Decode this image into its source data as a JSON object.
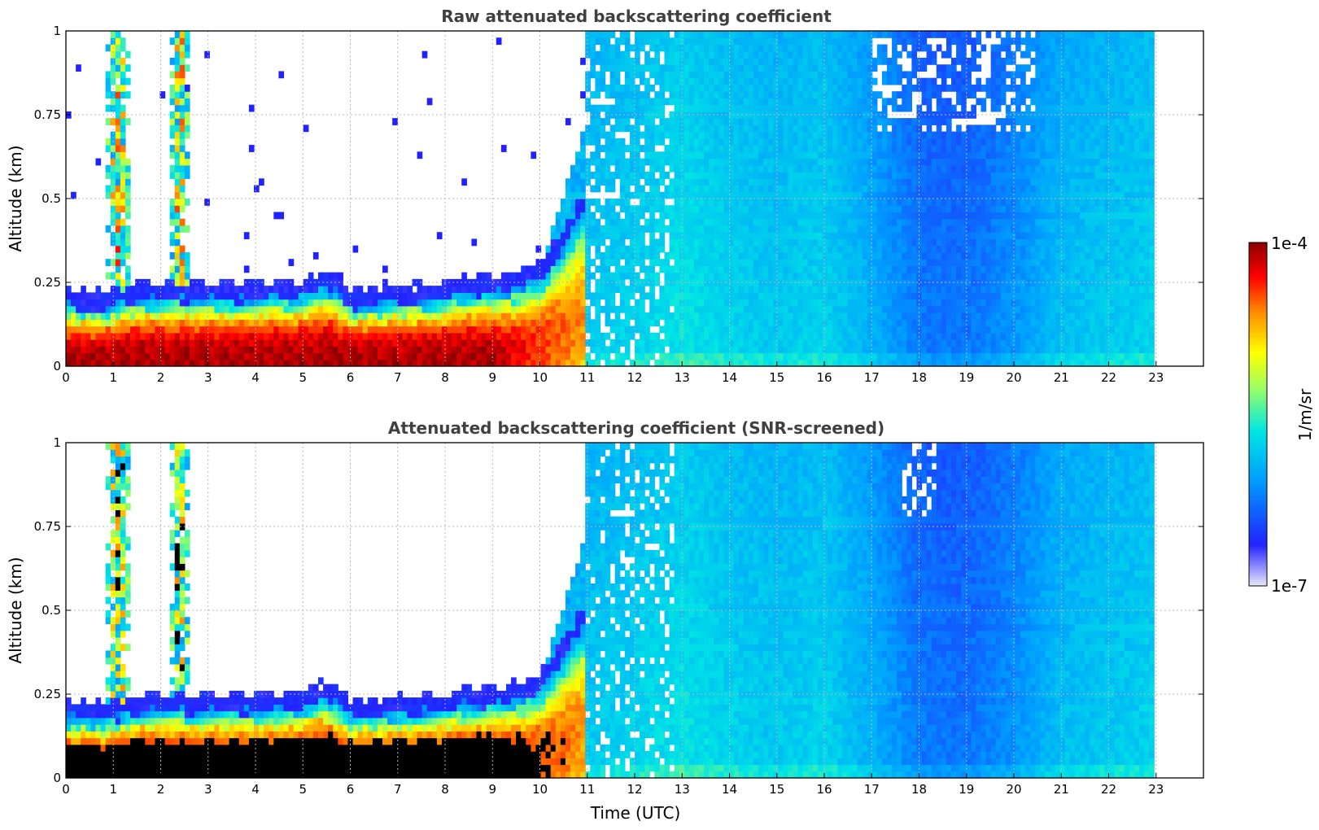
{
  "chart_data": [
    {
      "type": "heatmap",
      "title": "Raw attenuated backscattering coefficient",
      "ylabel": "Altitude (km)",
      "xlabel": "",
      "xlim": [
        0,
        24
      ],
      "ylim": [
        0,
        1
      ],
      "x_ticks": [
        "0",
        "1",
        "2",
        "3",
        "4",
        "5",
        "6",
        "7",
        "8",
        "9",
        "10",
        "11",
        "12",
        "13",
        "14",
        "15",
        "16",
        "17",
        "18",
        "19",
        "20",
        "21",
        "22",
        "23"
      ],
      "y_ticks": [
        "0",
        "0.25",
        "0.5",
        "0.75",
        "1"
      ],
      "grid": true,
      "data_end_hour": 23,
      "aerosol_layer_top_km": [
        [
          0,
          0.18
        ],
        [
          0.8,
          0.17
        ],
        [
          1.5,
          0.2
        ],
        [
          2.6,
          0.2
        ],
        [
          3,
          0.2
        ],
        [
          4,
          0.2
        ],
        [
          5,
          0.21
        ],
        [
          5.5,
          0.24
        ],
        [
          6,
          0.18
        ],
        [
          7,
          0.19
        ],
        [
          8,
          0.2
        ],
        [
          8.5,
          0.22
        ],
        [
          9,
          0.22
        ],
        [
          9.5,
          0.23
        ],
        [
          10,
          0.26
        ],
        [
          10.5,
          0.36
        ],
        [
          11,
          0.48
        ]
      ],
      "background_level_by_hour": [
        [
          11,
          0.4
        ],
        [
          12,
          0.42
        ],
        [
          13,
          0.45
        ],
        [
          14,
          0.42
        ],
        [
          15,
          0.4
        ],
        [
          16,
          0.42
        ],
        [
          17,
          0.35
        ],
        [
          18,
          0.26
        ],
        [
          19,
          0.25
        ],
        [
          20,
          0.3
        ],
        [
          21,
          0.38
        ],
        [
          22,
          0.4
        ],
        [
          23,
          0.42
        ]
      ]
    },
    {
      "type": "heatmap",
      "title": "Attenuated backscattering coefficient (SNR-screened)",
      "ylabel": "Altitude (km)",
      "xlabel": "Time (UTC)",
      "xlim": [
        0,
        24
      ],
      "ylim": [
        0,
        1
      ],
      "x_ticks": [
        "0",
        "1",
        "2",
        "3",
        "4",
        "5",
        "6",
        "7",
        "8",
        "9",
        "10",
        "11",
        "12",
        "13",
        "14",
        "15",
        "16",
        "17",
        "18",
        "19",
        "20",
        "21",
        "22",
        "23"
      ],
      "y_ticks": [
        "0",
        "0.25",
        "0.5",
        "0.75",
        "1"
      ],
      "grid": true,
      "data_end_hour": 23,
      "saturated_values_shown_in": "#000000"
    }
  ],
  "colorbar": {
    "label": "1/m/sr",
    "max_label": "1e-4",
    "min_label": "1e-7",
    "scale": "log",
    "colormap": [
      "#e8e8fa",
      "#0000ff",
      "#0099ff",
      "#00eeee",
      "#a0ff60",
      "#ffff00",
      "#ff8800",
      "#ff0000",
      "#8b0000"
    ]
  }
}
